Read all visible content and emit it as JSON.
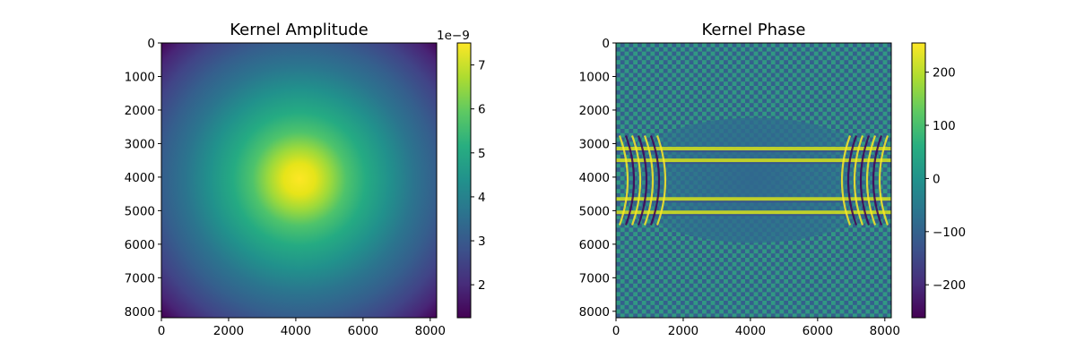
{
  "chart_data": [
    {
      "type": "heatmap",
      "title": "Kernel Amplitude",
      "xlabel": "",
      "ylabel": "",
      "xlim": [
        0,
        8192
      ],
      "ylim": [
        8192,
        0
      ],
      "xticks": [
        0,
        2000,
        4000,
        6000,
        8000
      ],
      "xtick_labels": [
        "0",
        "2000",
        "4000",
        "6000",
        "8000"
      ],
      "yticks": [
        0,
        1000,
        2000,
        3000,
        4000,
        5000,
        6000,
        7000,
        8000
      ],
      "ytick_labels": [
        "0",
        "1000",
        "2000",
        "3000",
        "4000",
        "5000",
        "6000",
        "7000",
        "8000"
      ],
      "colormap": "viridis",
      "center": [
        4096,
        4096
      ],
      "peak_value": 7.5,
      "corner_value": 1.3,
      "colorbar": {
        "min": 1.25,
        "max": 7.5,
        "ticks": [
          2,
          3,
          4,
          5,
          6,
          7
        ],
        "tick_labels": [
          "2",
          "3",
          "4",
          "5",
          "6",
          "7"
        ],
        "offset_label": "1e−9"
      }
    },
    {
      "type": "heatmap",
      "title": "Kernel Phase",
      "xlabel": "",
      "ylabel": "",
      "xlim": [
        0,
        8192
      ],
      "ylim": [
        8192,
        0
      ],
      "xticks": [
        0,
        2000,
        4000,
        6000,
        8000
      ],
      "xtick_labels": [
        "0",
        "2000",
        "4000",
        "6000",
        "8000"
      ],
      "yticks": [
        0,
        1000,
        2000,
        3000,
        4000,
        5000,
        6000,
        7000,
        8000
      ],
      "ytick_labels": [
        "0",
        "1000",
        "2000",
        "3000",
        "4000",
        "5000",
        "6000",
        "7000",
        "8000"
      ],
      "colormap": "viridis",
      "bright_rows": [
        3150,
        3500,
        4650,
        5050
      ],
      "colorbar": {
        "min": -262,
        "max": 255,
        "ticks": [
          200,
          100,
          0,
          -100,
          -200
        ],
        "tick_labels": [
          "200",
          "100",
          "0",
          "−100",
          "−200"
        ]
      }
    }
  ]
}
